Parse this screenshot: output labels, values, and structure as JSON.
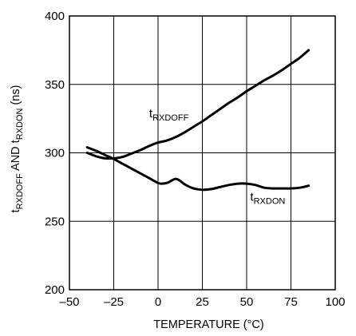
{
  "chart_data": {
    "type": "line",
    "title": "",
    "xlabel": "TEMPERATURE (°C)",
    "ylabel": {
      "parts": [
        {
          "text": "t",
          "sub": false
        },
        {
          "text": "RXDOFF",
          "sub": true
        },
        {
          "text": " AND t",
          "sub": false
        },
        {
          "text": "RXDON",
          "sub": true
        },
        {
          "text": " (ns)",
          "sub": false
        }
      ]
    },
    "xlim": [
      -50,
      100
    ],
    "ylim": [
      200,
      400
    ],
    "x_ticks": [
      -50,
      -25,
      0,
      25,
      50,
      75,
      100
    ],
    "x_tick_labels": [
      "–50",
      "–25",
      "0",
      "25",
      "50",
      "75",
      "100"
    ],
    "y_ticks": [
      200,
      250,
      300,
      350,
      400
    ],
    "y_tick_labels": [
      "200",
      "250",
      "300",
      "350",
      "400"
    ],
    "grid": true,
    "legend": "none",
    "series": [
      {
        "name": "tRXDOFF",
        "label_main": "t",
        "label_sub": "RXDOFF",
        "label_at": [
          -5,
          326
        ],
        "x": [
          -40,
          -35,
          -30,
          -25,
          -20,
          -15,
          -10,
          -5,
          0,
          5,
          10,
          15,
          20,
          25,
          30,
          35,
          40,
          45,
          50,
          55,
          60,
          65,
          70,
          75,
          80,
          85
        ],
        "y": [
          300,
          297.5,
          296,
          296,
          297,
          299.5,
          302,
          305,
          307.5,
          309,
          311.5,
          315,
          319,
          323,
          327.5,
          332,
          336.5,
          340.5,
          345,
          349,
          353,
          356.5,
          360.5,
          365,
          369.5,
          375
        ]
      },
      {
        "name": "tRXDON",
        "label_main": "t",
        "label_sub": "RXDON",
        "label_at": [
          52,
          265
        ],
        "x": [
          -40,
          -35,
          -30,
          -25,
          -20,
          -15,
          -10,
          -5,
          0,
          2,
          5,
          8,
          10,
          12,
          15,
          20,
          25,
          30,
          35,
          40,
          45,
          50,
          55,
          60,
          65,
          70,
          75,
          80,
          85
        ],
        "y": [
          304,
          301.5,
          298.5,
          295.5,
          292,
          288.5,
          285,
          281.5,
          278,
          277.5,
          278,
          280,
          281,
          280,
          277,
          274,
          273,
          273.5,
          275,
          276.5,
          277.5,
          277.5,
          276.5,
          274.5,
          274,
          274,
          274,
          274.5,
          276
        ]
      }
    ]
  }
}
